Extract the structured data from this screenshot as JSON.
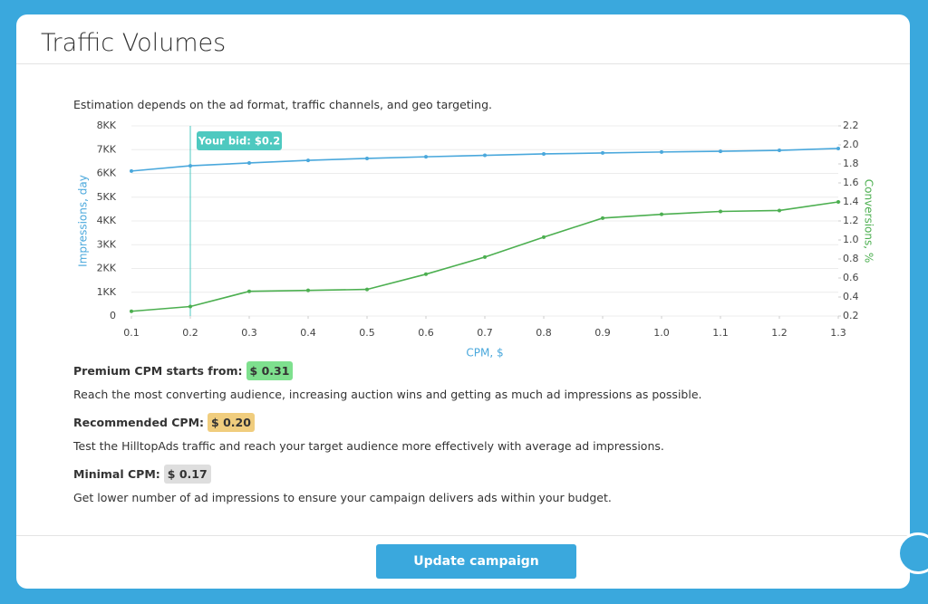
{
  "header": {
    "title": "Traffic Volumes"
  },
  "subtitle": "Estimation depends on the ad format, traffic channels, and geo targeting.",
  "chart_data": {
    "type": "line",
    "x": [
      0.1,
      0.2,
      0.3,
      0.4,
      0.5,
      0.6,
      0.7,
      0.8,
      0.9,
      1.0,
      1.1,
      1.2,
      1.3
    ],
    "series": [
      {
        "color": "#4aa8dc",
        "axis": "y",
        "values": [
          6100000,
          6320000,
          6440000,
          6550000,
          6630000,
          6700000,
          6760000,
          6820000,
          6860000,
          6900000,
          6930000,
          6970000,
          7050000
        ]
      },
      {
        "color": "#4caf50",
        "axis": "y2",
        "values": [
          0.25,
          0.3,
          0.46,
          0.47,
          0.48,
          0.64,
          0.82,
          1.03,
          1.23,
          1.27,
          1.3,
          1.31,
          1.4
        ]
      }
    ],
    "xlim": [
      0.1,
      1.3
    ],
    "xticks": [
      0.1,
      0.2,
      0.3,
      0.4,
      0.5,
      0.6,
      0.7,
      0.8,
      0.9,
      {
        "value": 1,
        "label": "1.0"
      },
      1.1,
      1.2,
      1.3
    ],
    "ylim": [
      0,
      8000000
    ],
    "yticks": [
      0,
      {
        "value": 1000000,
        "label": "1KK"
      },
      {
        "value": 2000000,
        "label": "2KK"
      },
      {
        "value": 3000000,
        "label": "3KK"
      },
      {
        "value": 4000000,
        "label": "4KK"
      },
      {
        "value": 5000000,
        "label": "5KK"
      },
      {
        "value": 6000000,
        "label": "6KK"
      },
      {
        "value": 7000000,
        "label": "7KK"
      },
      {
        "value": 8000000,
        "label": "8KK"
      }
    ],
    "y2lim": [
      0.2,
      2.2
    ],
    "y2ticks": [
      0.2,
      0.4,
      0.6,
      0.8,
      {
        "value": 1,
        "label": "1.0"
      },
      1.2,
      1.4,
      1.6,
      1.8,
      {
        "value": 2,
        "label": "2.0"
      },
      2.2
    ],
    "xlabel": "CPM, $",
    "ylabel": "Impressions, day",
    "y2label": "Conversions, %",
    "grid": true,
    "marker": {
      "x": 0.2,
      "label": "Your bid: $0.2",
      "color": "#4ec9c0"
    }
  },
  "tiers": [
    {
      "label": "Premium CPM starts from:",
      "price": "$ 0.31",
      "color": "#7ee08e",
      "description": "Reach the most converting audience, increasing auction wins and getting as much ad impressions as possible."
    },
    {
      "label": "Recommended CPM:",
      "price": "$ 0.20",
      "color": "#f0cd7e",
      "description": "Test the HilltopAds traffic and reach your target audience more effectively with average ad impressions."
    },
    {
      "label": "Minimal CPM:",
      "price": "$ 0.17",
      "color": "#dedede",
      "description": "Get lower number of ad impressions to ensure your campaign delivers ads within your budget."
    }
  ],
  "button": "Update campaign"
}
